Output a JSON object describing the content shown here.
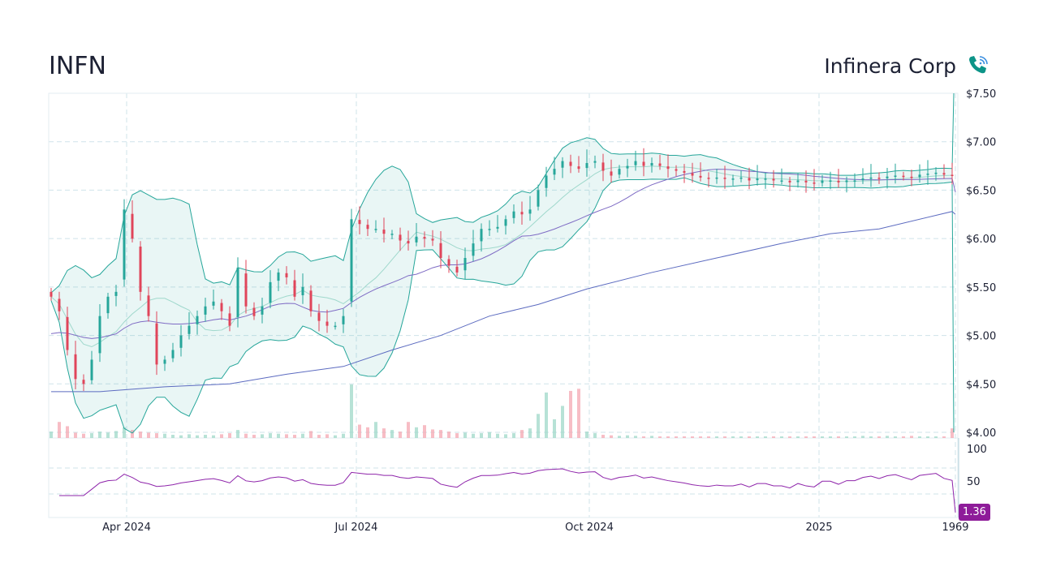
{
  "header": {
    "ticker": "INFN",
    "company": "Infinera Corp",
    "icon": "phone-signal-icon"
  },
  "colors": {
    "up": "#26a69a",
    "down": "#e0455a",
    "band": "#26a69a",
    "sma_short": "#7e6bc4",
    "sma_long": "#5c6bc0",
    "rsi": "#8e24aa",
    "grid": "#cfe3ea"
  },
  "chart_data": {
    "type": "candlestick",
    "title": "INFN",
    "price_axis": {
      "ylim": [
        4.0,
        7.5
      ],
      "ticks": [
        {
          "v": 7.5,
          "label": "$7.50"
        },
        {
          "v": 7.0,
          "label": "$7.00"
        },
        {
          "v": 6.5,
          "label": "$6.50"
        },
        {
          "v": 6.0,
          "label": "$6.00"
        },
        {
          "v": 5.5,
          "label": "$5.50"
        },
        {
          "v": 5.0,
          "label": "$5.00"
        },
        {
          "v": 4.5,
          "label": "$4.50"
        },
        {
          "v": 4.0,
          "label": "$4.00"
        }
      ]
    },
    "rsi_axis": {
      "ylim": [
        0,
        100
      ],
      "ticks": [
        {
          "v": 100,
          "label": "100"
        },
        {
          "v": 50,
          "label": "50"
        }
      ],
      "last_value": "1.36"
    },
    "x_ticks": [
      {
        "i": 9.3,
        "label": "Apr 2024"
      },
      {
        "i": 37.6,
        "label": "Jul 2024"
      },
      {
        "i": 66.3,
        "label": "Oct 2024"
      },
      {
        "i": 94.6,
        "label": "2025"
      },
      {
        "i": 111.7,
        "label": "1969"
      }
    ],
    "closes": [
      5.4,
      5.25,
      4.85,
      4.55,
      4.5,
      4.75,
      5.2,
      5.4,
      5.45,
      6.3,
      6.0,
      5.45,
      5.2,
      4.7,
      4.75,
      4.85,
      5.0,
      5.1,
      5.2,
      5.3,
      5.35,
      5.25,
      5.1,
      5.7,
      5.3,
      5.2,
      5.3,
      5.55,
      5.65,
      5.6,
      5.4,
      5.5,
      5.25,
      5.15,
      5.1,
      5.1,
      5.2,
      6.2,
      6.15,
      6.1,
      6.1,
      6.05,
      6.05,
      5.98,
      5.95,
      6.02,
      6.0,
      5.98,
      5.8,
      5.72,
      5.65,
      5.8,
      5.95,
      6.1,
      6.1,
      6.12,
      6.2,
      6.28,
      6.25,
      6.3,
      6.5,
      6.65,
      6.72,
      6.8,
      6.75,
      6.72,
      6.78,
      6.8,
      6.7,
      6.65,
      6.72,
      6.75,
      6.8,
      6.75,
      6.78,
      6.75,
      6.72,
      6.7,
      6.68,
      6.65,
      6.63,
      6.62,
      6.63,
      6.62,
      6.62,
      6.63,
      6.6,
      6.62,
      6.62,
      6.6,
      6.6,
      6.58,
      6.6,
      6.58,
      6.57,
      6.6,
      6.6,
      6.58,
      6.6,
      6.6,
      6.62,
      6.63,
      6.62,
      6.64,
      6.65,
      6.64,
      6.63,
      6.66,
      6.67,
      6.68,
      6.66,
      6.65,
      0.1
    ],
    "volumes": [
      1.2,
      3.0,
      2.2,
      1.0,
      0.8,
      0.9,
      1.2,
      1.0,
      1.3,
      2.0,
      1.5,
      1.2,
      1.0,
      0.9,
      0.8,
      0.6,
      0.5,
      0.7,
      0.5,
      0.6,
      0.5,
      0.7,
      0.9,
      1.5,
      0.8,
      0.6,
      0.7,
      0.9,
      0.8,
      0.7,
      0.6,
      0.8,
      1.3,
      0.6,
      0.7,
      0.5,
      0.8,
      10.0,
      2.5,
      2.0,
      3.0,
      1.8,
      1.5,
      1.2,
      3.0,
      2.0,
      2.4,
      1.6,
      1.5,
      1.2,
      0.9,
      1.0,
      0.8,
      0.9,
      1.1,
      0.8,
      0.7,
      0.9,
      1.5,
      1.8,
      4.5,
      8.5,
      3.5,
      6.0,
      8.8,
      9.2,
      1.2,
      0.9,
      0.6,
      0.5,
      0.4,
      0.5,
      0.4,
      0.3,
      0.4,
      0.3,
      0.3,
      0.3,
      0.3,
      0.3,
      0.3,
      0.3,
      0.3,
      0.3,
      0.3,
      0.3,
      0.3,
      0.3,
      0.3,
      0.3,
      0.3,
      0.3,
      0.3,
      0.3,
      0.3,
      0.3,
      0.3,
      0.3,
      0.3,
      0.3,
      0.4,
      0.3,
      0.3,
      0.4,
      0.3,
      0.3,
      0.4,
      0.3,
      0.3,
      0.3,
      0.3,
      1.8
    ],
    "sma200_keys": [
      [
        0,
        4.42
      ],
      [
        6,
        4.42
      ],
      [
        14,
        4.47
      ],
      [
        22,
        4.5
      ],
      [
        29,
        4.6
      ],
      [
        36,
        4.68
      ],
      [
        42,
        4.85
      ],
      [
        48,
        5.0
      ],
      [
        54,
        5.2
      ],
      [
        60,
        5.32
      ],
      [
        66,
        5.48
      ],
      [
        74,
        5.65
      ],
      [
        82,
        5.8
      ],
      [
        90,
        5.95
      ],
      [
        96,
        6.05
      ],
      [
        102,
        6.1
      ],
      [
        111,
        6.28
      ],
      [
        112,
        6.25
      ]
    ],
    "indicators": [
      "Bollinger Bands (20,2)",
      "SMA 50",
      "SMA 200",
      "Volume",
      "RSI"
    ]
  }
}
